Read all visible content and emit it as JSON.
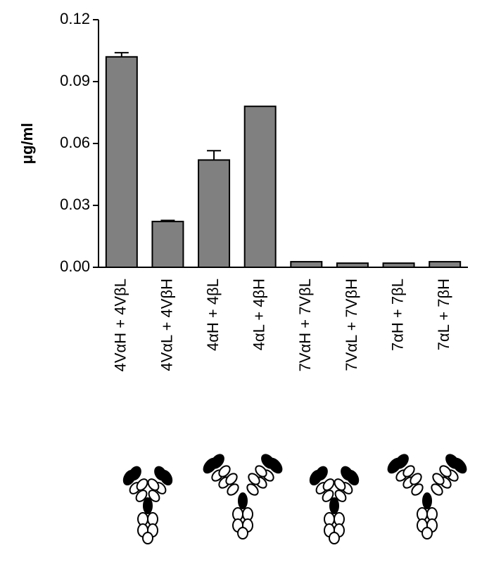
{
  "chart_data": {
    "type": "bar",
    "y_label": "μg/ml",
    "categories": [
      "4VαH + 4VβL",
      "4VαL + 4VβH",
      "4αH + 4βL",
      "4αL + 4βH",
      "7VαH + 7VβL",
      "7VαL + 7VβH",
      "7αH + 7βL",
      "7αL + 7βH"
    ],
    "values": [
      0.102,
      0.0222,
      0.052,
      0.078,
      0.0027,
      0.002,
      0.002,
      0.0027
    ],
    "errors": [
      0.002,
      0.0005,
      0.0045,
      null,
      null,
      null,
      null,
      null
    ],
    "color": "#808080",
    "ylim": [
      0,
      0.12
    ],
    "yticks": [
      {
        "value": 0,
        "label": "0.00"
      },
      0.03,
      0.06,
      0.09,
      0.12
    ]
  }
}
